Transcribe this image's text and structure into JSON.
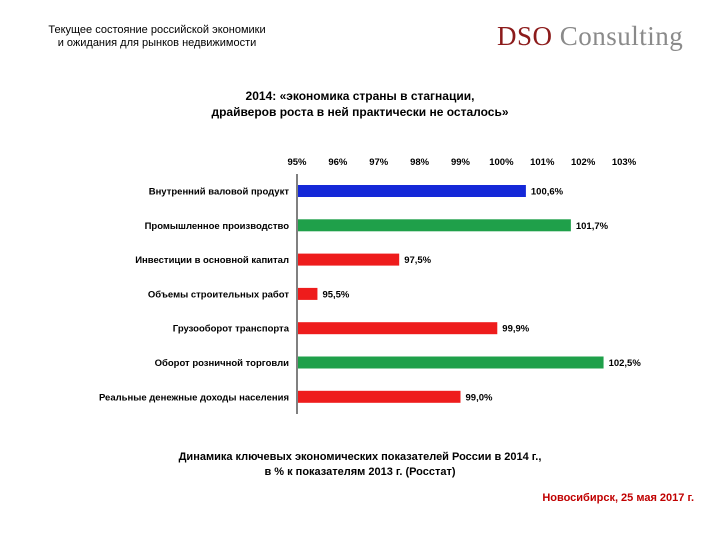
{
  "header": {
    "title_line1": "Текущее состояние российской экономики",
    "title_line2": "и ожидания для рынков недвижимости",
    "logo_brand": "DSO",
    "logo_rest": " Consulting"
  },
  "slide": {
    "title_line1": "2014: «экономика страны в стагнации,",
    "title_line2": "драйверов роста в ней практически не осталось»"
  },
  "chart_data": {
    "type": "bar",
    "orientation": "horizontal",
    "x_ticks": [
      "95%",
      "96%",
      "97%",
      "98%",
      "99%",
      "100%",
      "101%",
      "102%",
      "103%"
    ],
    "xlim": [
      95,
      103
    ],
    "categories": [
      "Внутренний валовой продукт",
      "Промышленное производство",
      "Инвестиции в основной капитал",
      "Объемы строительных работ",
      "Грузооборот транспорта",
      "Оборот розничной торговли",
      "Реальные денежные доходы населения"
    ],
    "values": [
      100.6,
      101.7,
      97.5,
      95.5,
      99.9,
      102.5,
      99.0
    ],
    "value_labels": [
      "100,6%",
      "101,7%",
      "97,5%",
      "95,5%",
      "99,9%",
      "102,5%",
      "99,0%"
    ],
    "bar_colors": [
      "#1428d8",
      "#1fa04a",
      "#ee1c1c",
      "#ee1c1c",
      "#ee1c1c",
      "#1fa04a",
      "#ee1c1c"
    ]
  },
  "caption": {
    "line1": "Динамика ключевых экономических показателей России в 2014 г.,",
    "line2": "в % к показателям 2013 г. (Росстат)"
  },
  "footer": {
    "place_date": "Новосибирск, 25 мая 2017 г."
  }
}
